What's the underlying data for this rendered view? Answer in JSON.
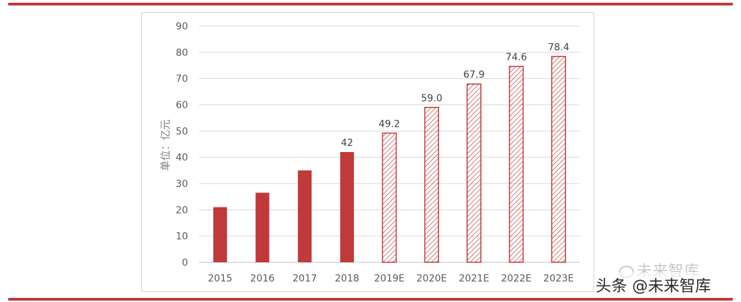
{
  "chart_data": {
    "type": "bar",
    "title": "",
    "ylabel": "单位：亿元",
    "xlabel": "",
    "ylim": [
      0,
      90
    ],
    "yticks": [
      0,
      10,
      20,
      30,
      40,
      50,
      60,
      70,
      80,
      90
    ],
    "grid": true,
    "categories": [
      "2015",
      "2016",
      "2017",
      "2018",
      "2019E",
      "2020E",
      "2021E",
      "2022E",
      "2023E"
    ],
    "values": [
      21,
      26.5,
      35,
      42,
      49.2,
      59.0,
      67.9,
      74.6,
      78.4
    ],
    "data_labels": [
      "",
      "",
      "",
      "42",
      "49.2",
      "59.0",
      "67.9",
      "74.6",
      "78.4"
    ],
    "estimate": [
      false,
      false,
      false,
      false,
      true,
      true,
      true,
      true,
      true
    ]
  },
  "colors": {
    "bar": "#c0393b",
    "grid": "#d9d9d9",
    "axis_text": "#595959"
  },
  "watermark": {
    "logo_text": "未来智库",
    "source_text": "头条 @未来智库"
  }
}
